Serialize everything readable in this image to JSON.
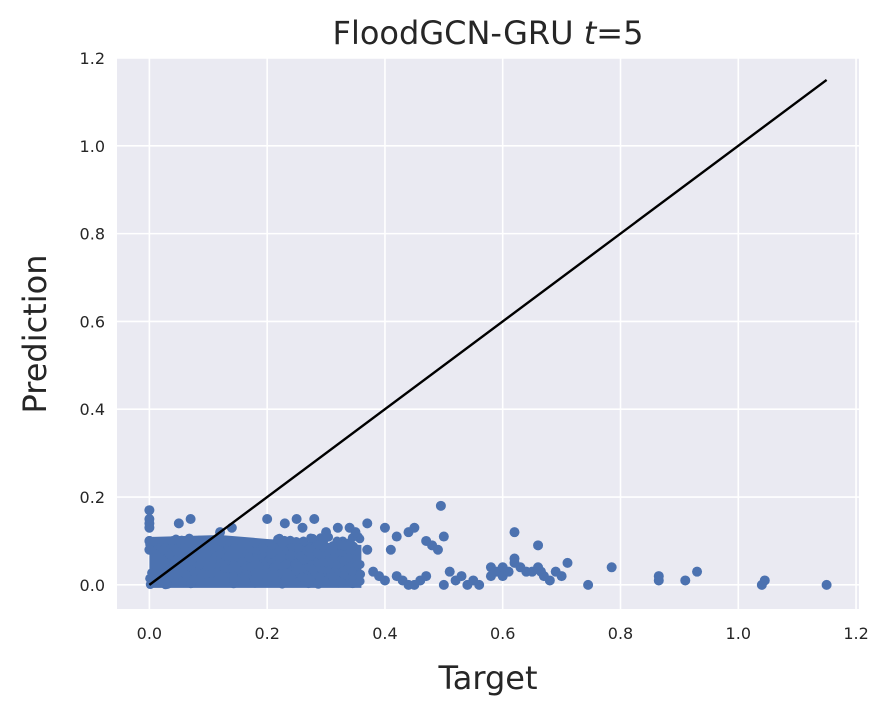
{
  "chart_data": {
    "type": "scatter",
    "title": "FloodGCN-GRU",
    "title_var": "t",
    "title_eq": "=5",
    "xlabel": "Target",
    "ylabel": "Prediction",
    "xlim": [
      -0.055,
      1.205
    ],
    "ylim": [
      -0.055,
      1.2
    ],
    "xticks": [
      0.0,
      0.2,
      0.4,
      0.6,
      0.8,
      1.0,
      1.2
    ],
    "yticks": [
      0.0,
      0.2,
      0.4,
      0.6,
      0.8,
      1.0,
      1.2
    ],
    "xtick_labels": [
      "0.0",
      "0.2",
      "0.4",
      "0.6",
      "0.8",
      "1.0",
      "1.2"
    ],
    "ytick_labels": [
      "0.0",
      "0.2",
      "0.4",
      "0.6",
      "0.8",
      "1.0",
      "1.2"
    ],
    "grid": true,
    "background": "#eaeaf2",
    "point_color": "#4c72b0",
    "line_color": "#000000",
    "reference_line": {
      "x": [
        0.0,
        1.15
      ],
      "y": [
        0.0,
        1.15
      ]
    },
    "dense_region": {
      "x_range": [
        0.0,
        0.36
      ],
      "y_range": [
        0.0,
        0.1
      ]
    },
    "points": [
      [
        0.0,
        0.17
      ],
      [
        0.0,
        0.15
      ],
      [
        0.0,
        0.14
      ],
      [
        0.0,
        0.13
      ],
      [
        0.0,
        0.1
      ],
      [
        0.0,
        0.08
      ],
      [
        0.05,
        0.14
      ],
      [
        0.07,
        0.15
      ],
      [
        0.12,
        0.12
      ],
      [
        0.14,
        0.13
      ],
      [
        0.2,
        0.15
      ],
      [
        0.23,
        0.14
      ],
      [
        0.25,
        0.15
      ],
      [
        0.28,
        0.15
      ],
      [
        0.26,
        0.13
      ],
      [
        0.3,
        0.12
      ],
      [
        0.32,
        0.13
      ],
      [
        0.34,
        0.13
      ],
      [
        0.35,
        0.12
      ],
      [
        0.37,
        0.14
      ],
      [
        0.4,
        0.13
      ],
      [
        0.42,
        0.11
      ],
      [
        0.44,
        0.12
      ],
      [
        0.45,
        0.13
      ],
      [
        0.47,
        0.1
      ],
      [
        0.48,
        0.09
      ],
      [
        0.49,
        0.08
      ],
      [
        0.5,
        0.11
      ],
      [
        0.495,
        0.18
      ],
      [
        0.41,
        0.08
      ],
      [
        0.37,
        0.08
      ],
      [
        0.33,
        0.09
      ],
      [
        0.31,
        0.08
      ],
      [
        0.38,
        0.03
      ],
      [
        0.39,
        0.02
      ],
      [
        0.4,
        0.01
      ],
      [
        0.42,
        0.02
      ],
      [
        0.43,
        0.01
      ],
      [
        0.44,
        0.0
      ],
      [
        0.45,
        0.0
      ],
      [
        0.46,
        0.01
      ],
      [
        0.47,
        0.02
      ],
      [
        0.5,
        0.0
      ],
      [
        0.51,
        0.03
      ],
      [
        0.52,
        0.01
      ],
      [
        0.53,
        0.02
      ],
      [
        0.54,
        0.0
      ],
      [
        0.55,
        0.01
      ],
      [
        0.56,
        0.0
      ],
      [
        0.58,
        0.02
      ],
      [
        0.59,
        0.03
      ],
      [
        0.6,
        0.02
      ],
      [
        0.61,
        0.03
      ],
      [
        0.62,
        0.05
      ],
      [
        0.63,
        0.04
      ],
      [
        0.64,
        0.03
      ],
      [
        0.65,
        0.03
      ],
      [
        0.66,
        0.04
      ],
      [
        0.665,
        0.03
      ],
      [
        0.67,
        0.02
      ],
      [
        0.68,
        0.01
      ],
      [
        0.69,
        0.03
      ],
      [
        0.7,
        0.02
      ],
      [
        0.71,
        0.05
      ],
      [
        0.6,
        0.04
      ],
      [
        0.62,
        0.06
      ],
      [
        0.66,
        0.09
      ],
      [
        0.62,
        0.12
      ],
      [
        0.58,
        0.04
      ],
      [
        0.745,
        0.0
      ],
      [
        0.785,
        0.04
      ],
      [
        0.865,
        0.01
      ],
      [
        0.865,
        0.02
      ],
      [
        0.91,
        0.01
      ],
      [
        0.93,
        0.03
      ],
      [
        1.04,
        0.0
      ],
      [
        1.045,
        0.01
      ],
      [
        1.15,
        0.0
      ]
    ]
  }
}
